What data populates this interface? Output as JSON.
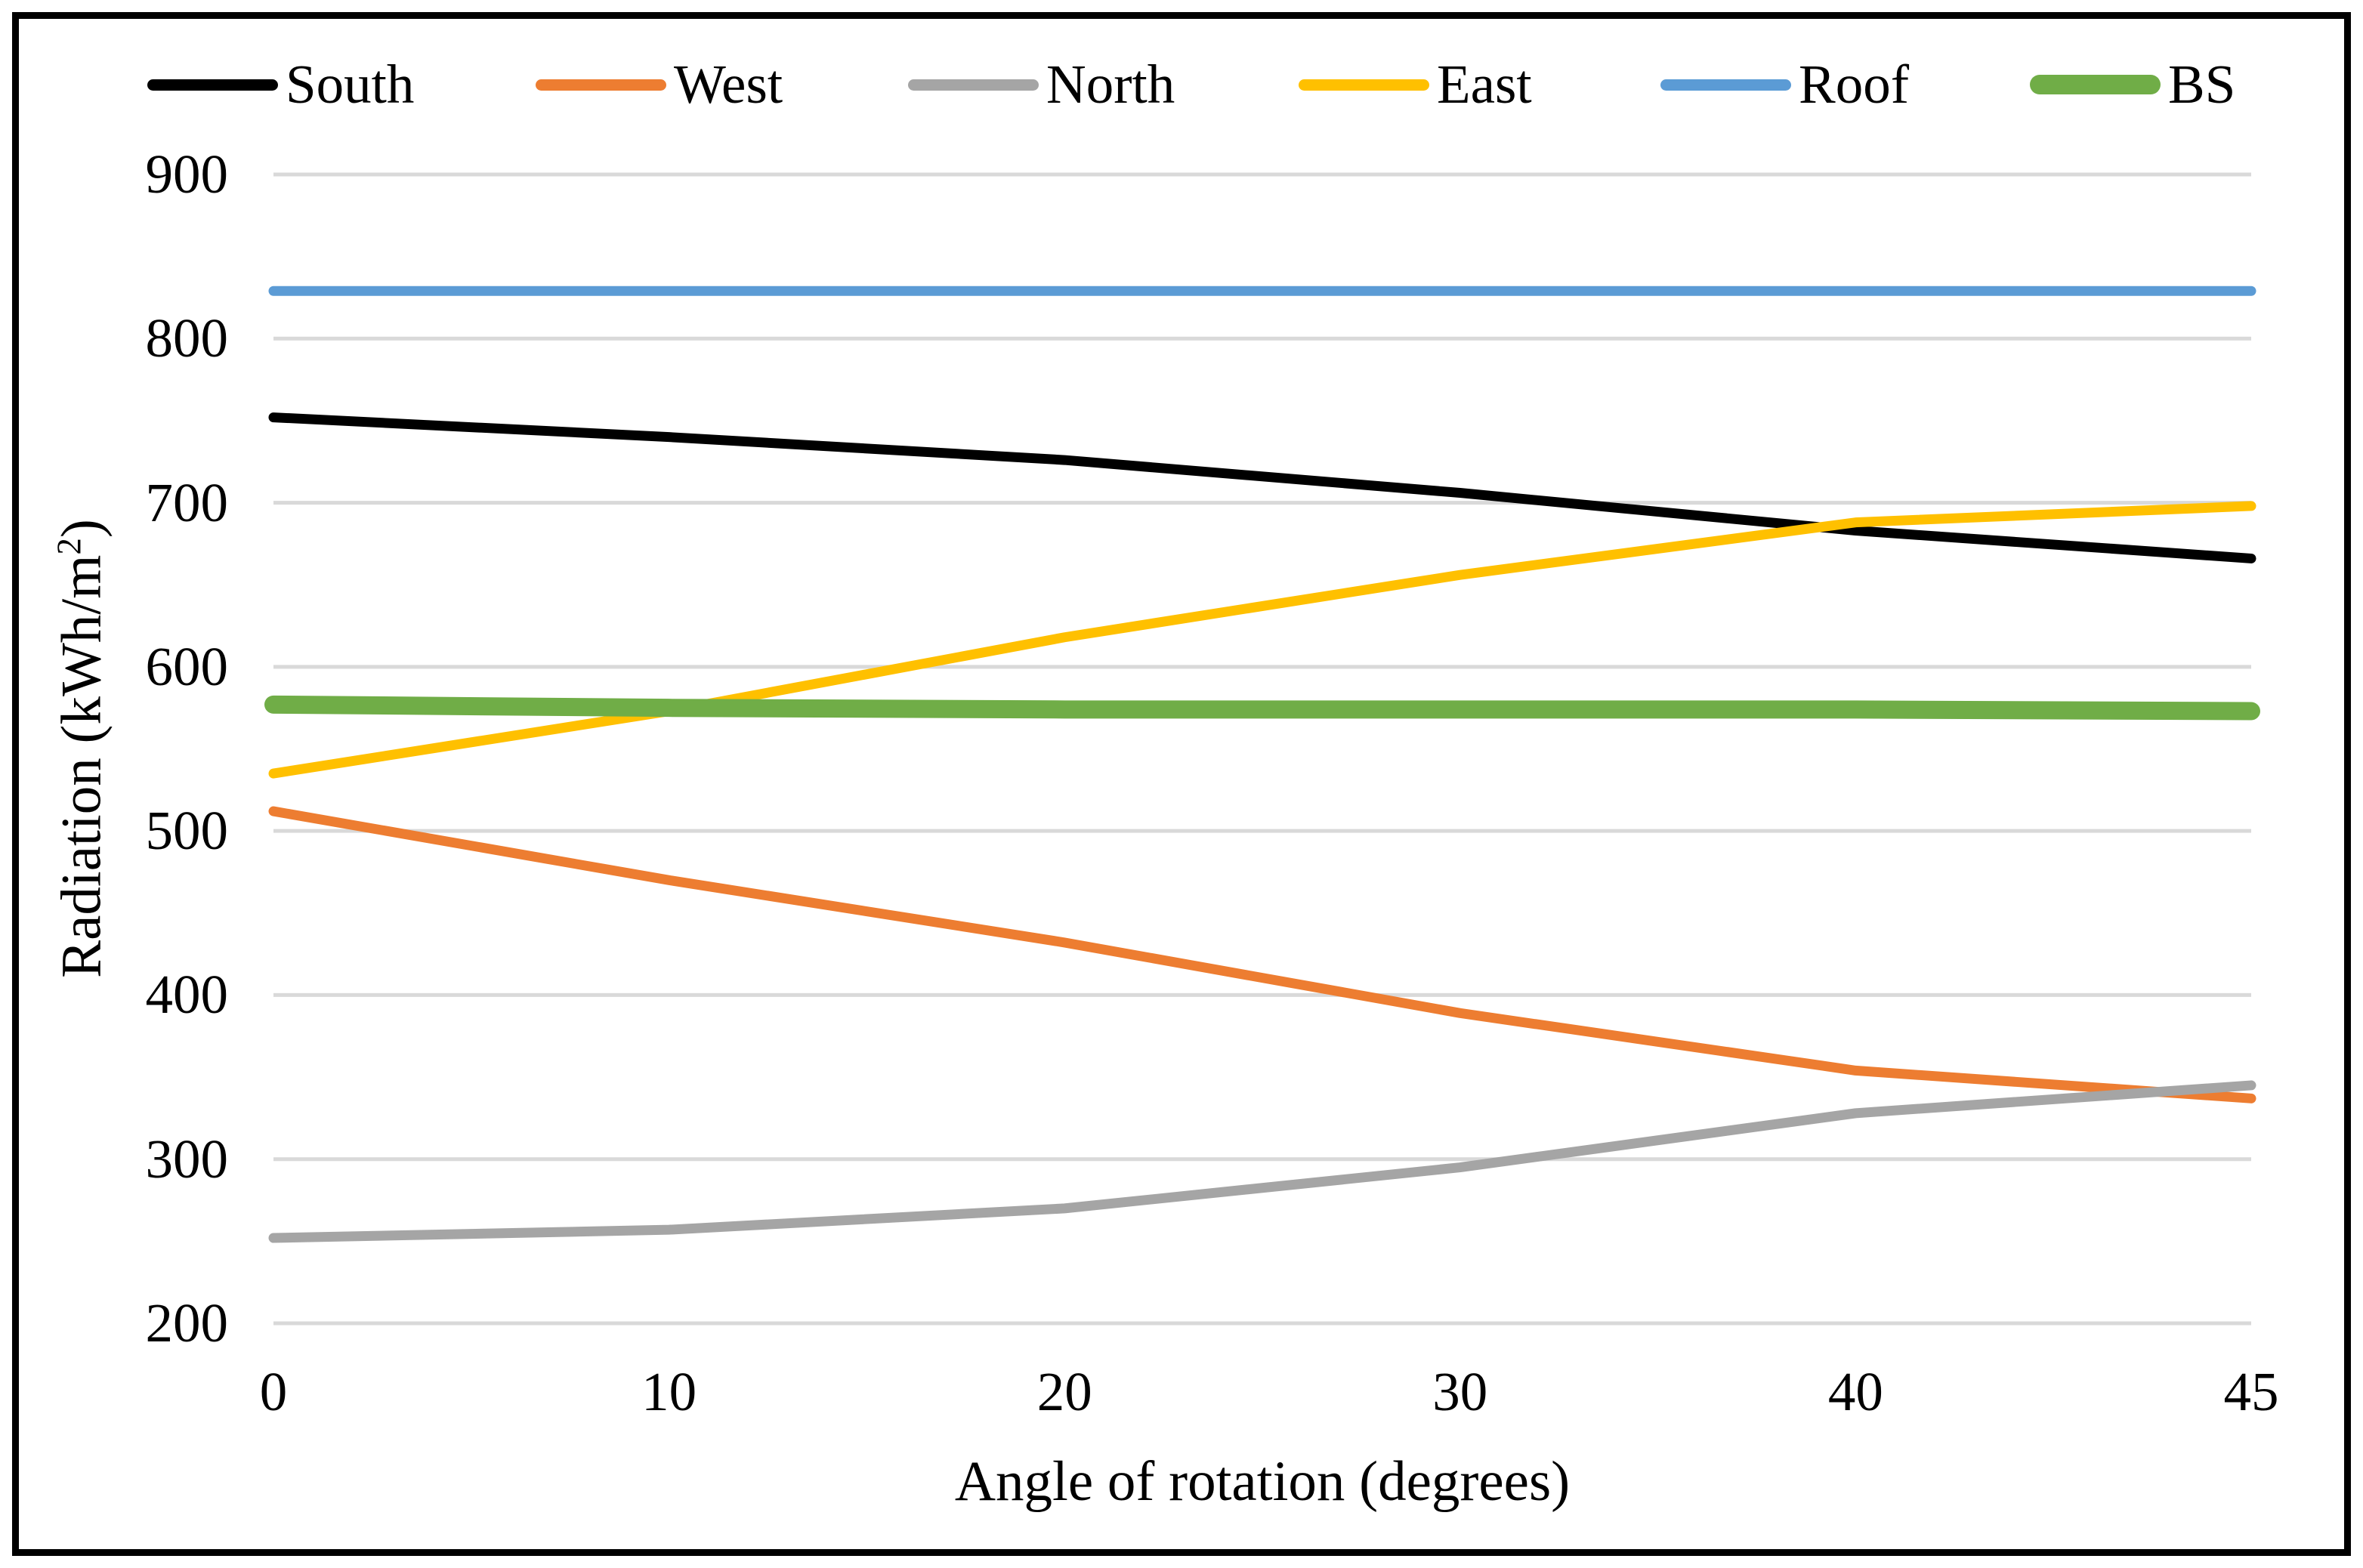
{
  "chart_data": {
    "type": "line",
    "title": "",
    "xlabel": "Angle of rotation (degrees)",
    "ylabel": "Radiation (kWh/m2)",
    "ylabel_parts": {
      "prefix": "Radiation (kWh/m",
      "superscript": "2",
      "suffix": ")"
    },
    "categories": [
      "0",
      "10",
      "20",
      "30",
      "40",
      "45"
    ],
    "yticks": [
      "900",
      "800",
      "700",
      "600",
      "500",
      "400",
      "300",
      "200"
    ],
    "ylim": [
      200,
      900
    ],
    "grid": true,
    "legend_position": "top",
    "series": [
      {
        "name": "South",
        "color": "#000000",
        "thickness": 13,
        "values": [
          752,
          740,
          726,
          706,
          683,
          666
        ]
      },
      {
        "name": "West",
        "color": "#ED7D31",
        "thickness": 13,
        "values": [
          512,
          470,
          432,
          389,
          354,
          337
        ]
      },
      {
        "name": "North",
        "color": "#A5A5A5",
        "thickness": 13,
        "values": [
          252,
          257,
          270,
          295,
          328,
          345
        ]
      },
      {
        "name": "East",
        "color": "#FFC000",
        "thickness": 13,
        "values": [
          535,
          573,
          618,
          656,
          688,
          698
        ]
      },
      {
        "name": "Roof",
        "color": "#5B9BD5",
        "thickness": 13,
        "values": [
          829,
          829,
          829,
          829,
          829,
          829
        ]
      },
      {
        "name": "BS",
        "color": "#70AD47",
        "thickness": 24,
        "values": [
          577,
          575,
          574,
          574,
          574,
          573
        ]
      }
    ],
    "gridline_color": "#D9D9D9",
    "text_color": "#000000"
  }
}
